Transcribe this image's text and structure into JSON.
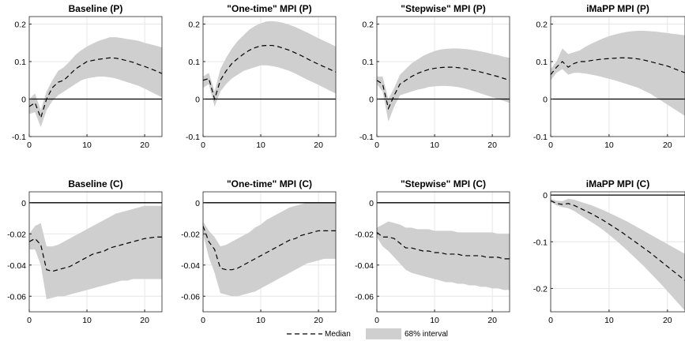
{
  "legend": {
    "median_label": "Median",
    "interval_label": "68% interval"
  },
  "colors": {
    "band": "#cfcfcf",
    "median": "#000000",
    "grid": "#e6e6e6",
    "zero_line": "#000000"
  },
  "chart_data": [
    {
      "type": "line",
      "title": "Baseline (P)",
      "xlim": [
        0,
        23
      ],
      "ylim": [
        -0.1,
        0.22
      ],
      "xticks": [
        0,
        10,
        20
      ],
      "xtick_labels": [
        "0",
        "10",
        "20"
      ],
      "yticks": [
        -0.1,
        0,
        0.1,
        0.2
      ],
      "ytick_labels": [
        "-0.1",
        "0",
        "0.1",
        "0.2"
      ],
      "grid": true,
      "x": [
        0,
        1,
        2,
        3,
        4,
        5,
        6,
        7,
        8,
        9,
        10,
        11,
        12,
        13,
        14,
        15,
        16,
        17,
        18,
        19,
        20,
        21,
        22,
        23
      ],
      "series": [
        {
          "name": "Median",
          "values": [
            -0.02,
            -0.01,
            -0.05,
            0.0,
            0.03,
            0.045,
            0.05,
            0.065,
            0.08,
            0.09,
            0.1,
            0.103,
            0.106,
            0.108,
            0.11,
            0.109,
            0.106,
            0.102,
            0.098,
            0.092,
            0.087,
            0.081,
            0.075,
            0.068
          ]
        },
        {
          "name": "68% interval",
          "lower": [
            -0.04,
            -0.035,
            -0.075,
            -0.03,
            -0.005,
            0.01,
            0.02,
            0.03,
            0.04,
            0.05,
            0.055,
            0.058,
            0.06,
            0.06,
            0.058,
            0.055,
            0.05,
            0.045,
            0.04,
            0.035,
            0.028,
            0.02,
            0.012,
            0.005
          ],
          "upper": [
            0.0,
            0.015,
            -0.03,
            0.02,
            0.05,
            0.075,
            0.085,
            0.1,
            0.118,
            0.13,
            0.14,
            0.148,
            0.155,
            0.16,
            0.165,
            0.165,
            0.163,
            0.16,
            0.158,
            0.155,
            0.15,
            0.146,
            0.142,
            0.138
          ]
        }
      ]
    },
    {
      "type": "line",
      "title": "\"One-time\" MPI (P)",
      "xlim": [
        0,
        23
      ],
      "ylim": [
        -0.1,
        0.22
      ],
      "xticks": [
        0,
        10,
        20
      ],
      "xtick_labels": [
        "0",
        "10",
        "20"
      ],
      "yticks": [
        -0.1,
        0,
        0.1,
        0.2
      ],
      "ytick_labels": [
        "-0.1",
        "0",
        "0.1",
        "0.2"
      ],
      "grid": true,
      "x": [
        0,
        1,
        2,
        3,
        4,
        5,
        6,
        7,
        8,
        9,
        10,
        11,
        12,
        13,
        14,
        15,
        16,
        17,
        18,
        19,
        20,
        21,
        22,
        23
      ],
      "series": [
        {
          "name": "Median",
          "values": [
            0.05,
            0.055,
            0.0,
            0.05,
            0.075,
            0.095,
            0.108,
            0.12,
            0.13,
            0.137,
            0.142,
            0.143,
            0.143,
            0.14,
            0.135,
            0.13,
            0.123,
            0.116,
            0.108,
            0.1,
            0.093,
            0.086,
            0.079,
            0.072
          ]
        },
        {
          "name": "68% interval",
          "lower": [
            0.03,
            0.04,
            -0.02,
            0.02,
            0.04,
            0.055,
            0.065,
            0.075,
            0.08,
            0.085,
            0.09,
            0.09,
            0.088,
            0.085,
            0.08,
            0.075,
            0.068,
            0.06,
            0.052,
            0.045,
            0.038,
            0.03,
            0.022,
            0.015
          ],
          "upper": [
            0.06,
            0.07,
            0.02,
            0.08,
            0.11,
            0.135,
            0.155,
            0.17,
            0.185,
            0.195,
            0.202,
            0.207,
            0.208,
            0.206,
            0.203,
            0.198,
            0.192,
            0.185,
            0.178,
            0.17,
            0.162,
            0.155,
            0.148,
            0.14
          ]
        }
      ]
    },
    {
      "type": "line",
      "title": "\"Stepwise\" MPI (P)",
      "xlim": [
        0,
        23
      ],
      "ylim": [
        -0.1,
        0.22
      ],
      "xticks": [
        0,
        10,
        20
      ],
      "xtick_labels": [
        "0",
        "10",
        "20"
      ],
      "yticks": [
        -0.1,
        0,
        0.1,
        0.2
      ],
      "ytick_labels": [
        "-0.1",
        "0",
        "0.1",
        "0.2"
      ],
      "grid": true,
      "x": [
        0,
        1,
        2,
        3,
        4,
        5,
        6,
        7,
        8,
        9,
        10,
        11,
        12,
        13,
        14,
        15,
        16,
        17,
        18,
        19,
        20,
        21,
        22,
        23
      ],
      "series": [
        {
          "name": "Median",
          "values": [
            0.05,
            0.04,
            -0.025,
            0.01,
            0.04,
            0.05,
            0.06,
            0.068,
            0.074,
            0.079,
            0.082,
            0.084,
            0.085,
            0.085,
            0.084,
            0.082,
            0.079,
            0.076,
            0.072,
            0.068,
            0.064,
            0.06,
            0.055,
            0.05
          ]
        },
        {
          "name": "68% interval",
          "lower": [
            0.04,
            0.02,
            -0.06,
            -0.02,
            0.01,
            0.015,
            0.02,
            0.025,
            0.028,
            0.032,
            0.034,
            0.035,
            0.035,
            0.034,
            0.032,
            0.029,
            0.025,
            0.02,
            0.015,
            0.01,
            0.005,
            0.0,
            -0.005,
            -0.01
          ],
          "upper": [
            0.06,
            0.06,
            0.0,
            0.03,
            0.065,
            0.08,
            0.095,
            0.105,
            0.115,
            0.122,
            0.128,
            0.132,
            0.134,
            0.135,
            0.135,
            0.134,
            0.132,
            0.13,
            0.127,
            0.124,
            0.12,
            0.117,
            0.113,
            0.11
          ]
        }
      ]
    },
    {
      "type": "line",
      "title": "iMaPP MPI (P)",
      "xlim": [
        0,
        23
      ],
      "ylim": [
        -0.1,
        0.22
      ],
      "xticks": [
        0,
        10,
        20
      ],
      "xtick_labels": [
        "0",
        "10",
        "20"
      ],
      "yticks": [
        -0.1,
        0,
        0.1,
        0.2
      ],
      "ytick_labels": [
        "-0.1",
        "0",
        "0.1",
        "0.2"
      ],
      "grid": true,
      "x": [
        0,
        1,
        2,
        3,
        4,
        5,
        6,
        7,
        8,
        9,
        10,
        11,
        12,
        13,
        14,
        15,
        16,
        17,
        18,
        19,
        20,
        21,
        22,
        23
      ],
      "series": [
        {
          "name": "Median",
          "values": [
            0.065,
            0.085,
            0.1,
            0.085,
            0.095,
            0.1,
            0.1,
            0.103,
            0.105,
            0.107,
            0.108,
            0.109,
            0.11,
            0.11,
            0.109,
            0.107,
            0.104,
            0.1,
            0.096,
            0.092,
            0.088,
            0.082,
            0.076,
            0.07
          ]
        },
        {
          "name": "68% interval",
          "lower": [
            0.05,
            0.07,
            0.08,
            0.065,
            0.07,
            0.07,
            0.068,
            0.065,
            0.062,
            0.058,
            0.054,
            0.05,
            0.045,
            0.04,
            0.035,
            0.03,
            0.022,
            0.015,
            0.005,
            -0.005,
            -0.015,
            -0.025,
            -0.035,
            -0.045
          ],
          "upper": [
            0.08,
            0.1,
            0.135,
            0.12,
            0.125,
            0.13,
            0.14,
            0.148,
            0.155,
            0.162,
            0.168,
            0.172,
            0.176,
            0.179,
            0.181,
            0.182,
            0.182,
            0.181,
            0.18,
            0.178,
            0.176,
            0.174,
            0.172,
            0.17
          ]
        }
      ]
    },
    {
      "type": "line",
      "title": "Baseline (C)",
      "xlim": [
        0,
        23
      ],
      "ylim": [
        -0.07,
        0.007
      ],
      "xticks": [
        0,
        10,
        20
      ],
      "xtick_labels": [
        "0",
        "10",
        "20"
      ],
      "yticks": [
        -0.06,
        -0.04,
        -0.02,
        0
      ],
      "ytick_labels": [
        "-0.06",
        "-0.04",
        "-0.02",
        "0"
      ],
      "grid": true,
      "x": [
        0,
        1,
        2,
        3,
        4,
        5,
        6,
        7,
        8,
        9,
        10,
        11,
        12,
        13,
        14,
        15,
        16,
        17,
        18,
        19,
        20,
        21,
        22,
        23
      ],
      "series": [
        {
          "name": "Median",
          "values": [
            -0.025,
            -0.023,
            -0.027,
            -0.043,
            -0.044,
            -0.043,
            -0.042,
            -0.041,
            -0.039,
            -0.037,
            -0.035,
            -0.033,
            -0.032,
            -0.031,
            -0.029,
            -0.028,
            -0.027,
            -0.026,
            -0.025,
            -0.024,
            -0.023,
            -0.0225,
            -0.022,
            -0.022
          ]
        },
        {
          "name": "68% interval",
          "lower": [
            -0.03,
            -0.03,
            -0.04,
            -0.062,
            -0.061,
            -0.06,
            -0.06,
            -0.059,
            -0.058,
            -0.057,
            -0.056,
            -0.055,
            -0.054,
            -0.053,
            -0.052,
            -0.051,
            -0.05,
            -0.05,
            -0.049,
            -0.049,
            -0.049,
            -0.049,
            -0.049,
            -0.049
          ],
          "upper": [
            -0.02,
            -0.015,
            -0.013,
            -0.028,
            -0.028,
            -0.027,
            -0.025,
            -0.023,
            -0.021,
            -0.019,
            -0.017,
            -0.015,
            -0.013,
            -0.011,
            -0.009,
            -0.007,
            -0.006,
            -0.005,
            -0.004,
            -0.003,
            -0.002,
            -0.002,
            -0.002,
            -0.002
          ]
        }
      ]
    },
    {
      "type": "line",
      "title": "\"One-time\" MPI (C)",
      "xlim": [
        0,
        23
      ],
      "ylim": [
        -0.07,
        0.007
      ],
      "xticks": [
        0,
        10,
        20
      ],
      "xtick_labels": [
        "0",
        "10",
        "20"
      ],
      "yticks": [
        -0.06,
        -0.04,
        -0.02,
        0
      ],
      "ytick_labels": [
        "-0.06",
        "-0.04",
        "-0.02",
        "0"
      ],
      "grid": true,
      "x": [
        0,
        1,
        2,
        3,
        4,
        5,
        6,
        7,
        8,
        9,
        10,
        11,
        12,
        13,
        14,
        15,
        16,
        17,
        18,
        19,
        20,
        21,
        22,
        23
      ],
      "series": [
        {
          "name": "Median",
          "values": [
            -0.015,
            -0.025,
            -0.03,
            -0.042,
            -0.043,
            -0.043,
            -0.042,
            -0.04,
            -0.038,
            -0.036,
            -0.034,
            -0.032,
            -0.03,
            -0.028,
            -0.026,
            -0.024,
            -0.023,
            -0.021,
            -0.02,
            -0.019,
            -0.018,
            -0.018,
            -0.018,
            -0.018
          ]
        },
        {
          "name": "68% interval",
          "lower": [
            -0.02,
            -0.035,
            -0.045,
            -0.058,
            -0.059,
            -0.06,
            -0.06,
            -0.059,
            -0.058,
            -0.057,
            -0.055,
            -0.053,
            -0.051,
            -0.049,
            -0.047,
            -0.045,
            -0.043,
            -0.041,
            -0.039,
            -0.038,
            -0.037,
            -0.036,
            -0.036,
            -0.036
          ],
          "upper": [
            -0.012,
            -0.018,
            -0.022,
            -0.028,
            -0.027,
            -0.025,
            -0.023,
            -0.021,
            -0.019,
            -0.016,
            -0.014,
            -0.011,
            -0.009,
            -0.007,
            -0.005,
            -0.003,
            -0.002,
            -0.001,
            0.0,
            0.0,
            0.0,
            0.0,
            0.0,
            0.0
          ]
        }
      ]
    },
    {
      "type": "line",
      "title": "\"Stepwise\" MPI (C)",
      "xlim": [
        0,
        23
      ],
      "ylim": [
        -0.07,
        0.007
      ],
      "xticks": [
        0,
        10,
        20
      ],
      "xtick_labels": [
        "0",
        "10",
        "20"
      ],
      "yticks": [
        -0.06,
        -0.04,
        -0.02,
        0
      ],
      "ytick_labels": [
        "-0.06",
        "-0.04",
        "-0.02",
        "0"
      ],
      "grid": true,
      "x": [
        0,
        1,
        2,
        3,
        4,
        5,
        6,
        7,
        8,
        9,
        10,
        11,
        12,
        13,
        14,
        15,
        16,
        17,
        18,
        19,
        20,
        21,
        22,
        23
      ],
      "series": [
        {
          "name": "Median",
          "values": [
            -0.019,
            -0.022,
            -0.022,
            -0.023,
            -0.026,
            -0.029,
            -0.029,
            -0.03,
            -0.031,
            -0.031,
            -0.032,
            -0.032,
            -0.033,
            -0.033,
            -0.033,
            -0.034,
            -0.034,
            -0.034,
            -0.034,
            -0.035,
            -0.035,
            -0.035,
            -0.036,
            -0.036
          ]
        },
        {
          "name": "68% interval",
          "lower": [
            -0.022,
            -0.028,
            -0.031,
            -0.035,
            -0.039,
            -0.043,
            -0.045,
            -0.046,
            -0.047,
            -0.048,
            -0.049,
            -0.05,
            -0.051,
            -0.051,
            -0.052,
            -0.052,
            -0.053,
            -0.053,
            -0.054,
            -0.054,
            -0.055,
            -0.055,
            -0.056,
            -0.056
          ],
          "upper": [
            -0.016,
            -0.014,
            -0.012,
            -0.013,
            -0.014,
            -0.016,
            -0.016,
            -0.017,
            -0.017,
            -0.017,
            -0.018,
            -0.018,
            -0.018,
            -0.018,
            -0.019,
            -0.019,
            -0.019,
            -0.019,
            -0.019,
            -0.019,
            -0.019,
            -0.02,
            -0.02,
            -0.02
          ]
        }
      ]
    },
    {
      "type": "line",
      "title": "iMaPP MPI (C)",
      "xlim": [
        0,
        23
      ],
      "ylim": [
        -0.25,
        0.007
      ],
      "xticks": [
        0,
        10,
        20
      ],
      "xtick_labels": [
        "0",
        "10",
        "20"
      ],
      "yticks": [
        -0.2,
        -0.1,
        0
      ],
      "ytick_labels": [
        "-0.2",
        "-0.1",
        "0"
      ],
      "grid": true,
      "x": [
        0,
        1,
        2,
        3,
        4,
        5,
        6,
        7,
        8,
        9,
        10,
        11,
        12,
        13,
        14,
        15,
        16,
        17,
        18,
        19,
        20,
        21,
        22,
        23
      ],
      "series": [
        {
          "name": "Median",
          "values": [
            -0.012,
            -0.018,
            -0.02,
            -0.018,
            -0.022,
            -0.028,
            -0.034,
            -0.04,
            -0.047,
            -0.054,
            -0.062,
            -0.07,
            -0.078,
            -0.087,
            -0.096,
            -0.105,
            -0.114,
            -0.123,
            -0.133,
            -0.143,
            -0.153,
            -0.163,
            -0.173,
            -0.183
          ]
        },
        {
          "name": "68% interval",
          "lower": [
            -0.015,
            -0.022,
            -0.026,
            -0.028,
            -0.034,
            -0.042,
            -0.05,
            -0.058,
            -0.066,
            -0.075,
            -0.085,
            -0.095,
            -0.106,
            -0.117,
            -0.129,
            -0.141,
            -0.153,
            -0.166,
            -0.179,
            -0.192,
            -0.206,
            -0.22,
            -0.234,
            -0.248
          ],
          "upper": [
            -0.008,
            -0.012,
            -0.013,
            -0.008,
            -0.01,
            -0.014,
            -0.018,
            -0.022,
            -0.027,
            -0.032,
            -0.038,
            -0.044,
            -0.05,
            -0.056,
            -0.063,
            -0.07,
            -0.077,
            -0.084,
            -0.091,
            -0.098,
            -0.105,
            -0.112,
            -0.119,
            -0.126
          ]
        }
      ]
    }
  ]
}
